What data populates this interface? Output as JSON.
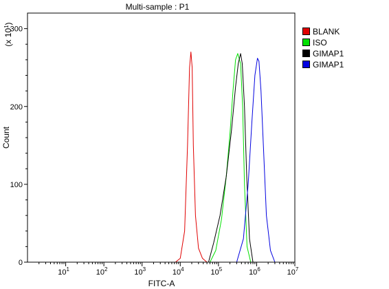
{
  "chart_data": {
    "type": "line",
    "title": "Multi-sample : P1",
    "xlabel": "FITC-A",
    "ylabel": "Count",
    "y_multiplier_base": "(x 10",
    "y_multiplier_exp": "1",
    "y_multiplier_close": ")",
    "x_scale": "log",
    "xlim": [
      1,
      10000000
    ],
    "ylim": [
      0,
      320
    ],
    "x_ticks": [
      {
        "base": "10",
        "exp": "1",
        "value": 10
      },
      {
        "base": "10",
        "exp": "2",
        "value": 100
      },
      {
        "base": "10",
        "exp": "3",
        "value": 1000
      },
      {
        "base": "10",
        "exp": "4",
        "value": 10000
      },
      {
        "base": "10",
        "exp": "5",
        "value": 100000
      },
      {
        "base": "10",
        "exp": "6",
        "value": 1000000
      },
      {
        "base": "10",
        "exp": "7",
        "value": 10000000
      }
    ],
    "y_ticks": [
      {
        "label": "0",
        "value": 0
      },
      {
        "label": "100",
        "value": 100
      },
      {
        "label": "200",
        "value": 200
      },
      {
        "label": "300",
        "value": 300
      }
    ],
    "legend_position": "right",
    "series": [
      {
        "name": "BLANK",
        "color": "#e00000",
        "x": [
          7500,
          10000,
          13000,
          15500,
          17500,
          19000,
          20500,
          22000,
          25000,
          30000,
          38000,
          50000
        ],
        "y": [
          0,
          5,
          40,
          150,
          250,
          270,
          250,
          150,
          60,
          18,
          5,
          0
        ]
      },
      {
        "name": "ISO",
        "color": "#00e000",
        "x": [
          60000,
          85000,
          120000,
          160000,
          200000,
          240000,
          280000,
          320000,
          380000,
          430000,
          480000,
          560000,
          700000
        ],
        "y": [
          0,
          15,
          55,
          110,
          165,
          220,
          260,
          268,
          255,
          200,
          100,
          20,
          0
        ]
      },
      {
        "name": "GIMAP1",
        "color": "#000000",
        "x": [
          55000,
          75000,
          110000,
          160000,
          220000,
          280000,
          330000,
          380000,
          420000,
          480000,
          550000,
          650000,
          800000
        ],
        "y": [
          0,
          25,
          60,
          110,
          170,
          225,
          255,
          268,
          255,
          200,
          110,
          30,
          0
        ]
      },
      {
        "name": "GIMAP1",
        "color": "#0000e0",
        "x": [
          300000,
          450000,
          600000,
          750000,
          900000,
          1050000,
          1150000,
          1300000,
          1500000,
          1800000,
          2300000,
          3000000
        ],
        "y": [
          0,
          30,
          100,
          180,
          240,
          262,
          258,
          220,
          150,
          60,
          15,
          0
        ]
      }
    ]
  }
}
